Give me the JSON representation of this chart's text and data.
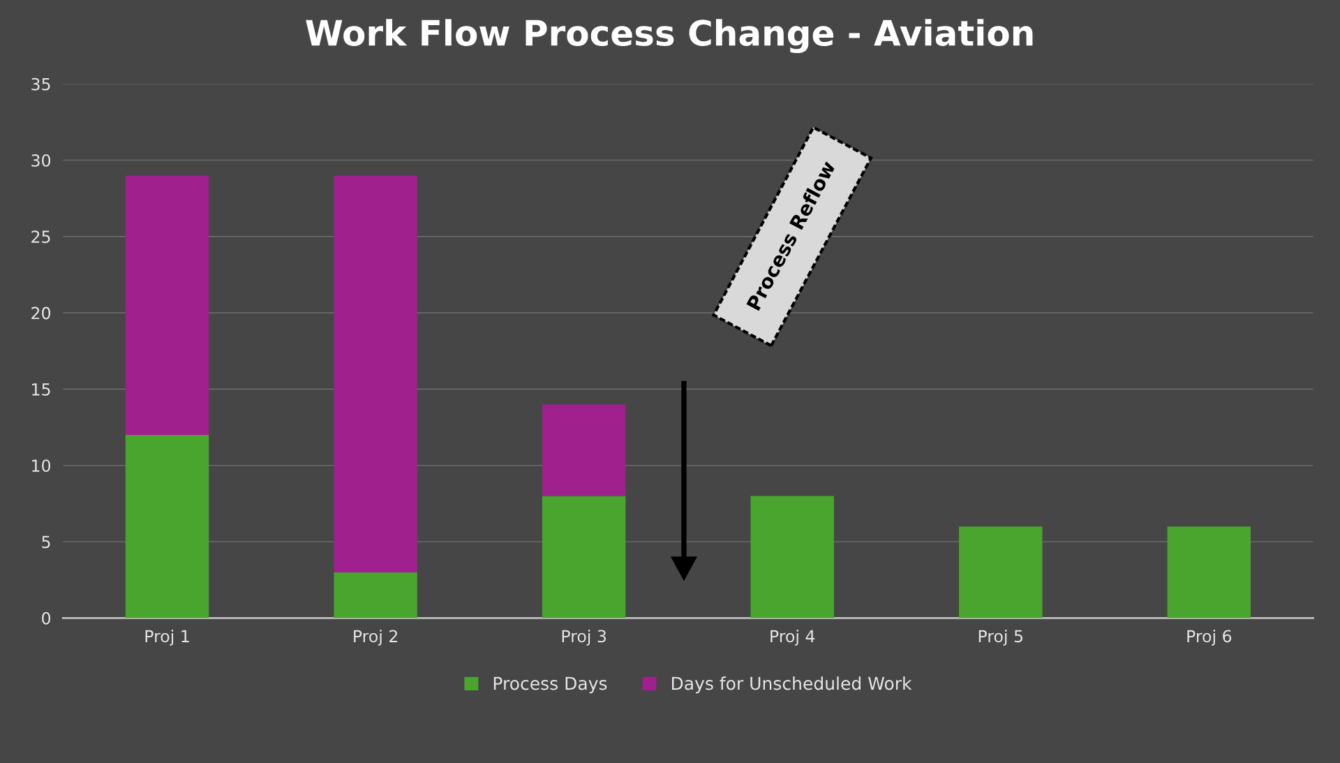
{
  "chart_data": {
    "type": "bar",
    "title": "Work Flow Process Change - Aviation",
    "categories": [
      "Proj 1",
      "Proj 2",
      "Proj 3",
      "Proj 4",
      "Proj 5",
      "Proj 6"
    ],
    "series": [
      {
        "name": "Process Days",
        "color": "#4aa52e",
        "values": [
          12,
          3,
          8,
          8,
          6,
          6
        ]
      },
      {
        "name": "Days for Unscheduled Work",
        "color": "#a0208e",
        "values": [
          17,
          26,
          6,
          null,
          null,
          null
        ]
      }
    ],
    "stacked": true,
    "ylim": [
      0,
      35
    ],
    "yticks": [
      0,
      5,
      10,
      15,
      20,
      25,
      30,
      35
    ],
    "grid": "y",
    "legend": "bottom",
    "annotations": [
      "Process Reflow"
    ]
  }
}
